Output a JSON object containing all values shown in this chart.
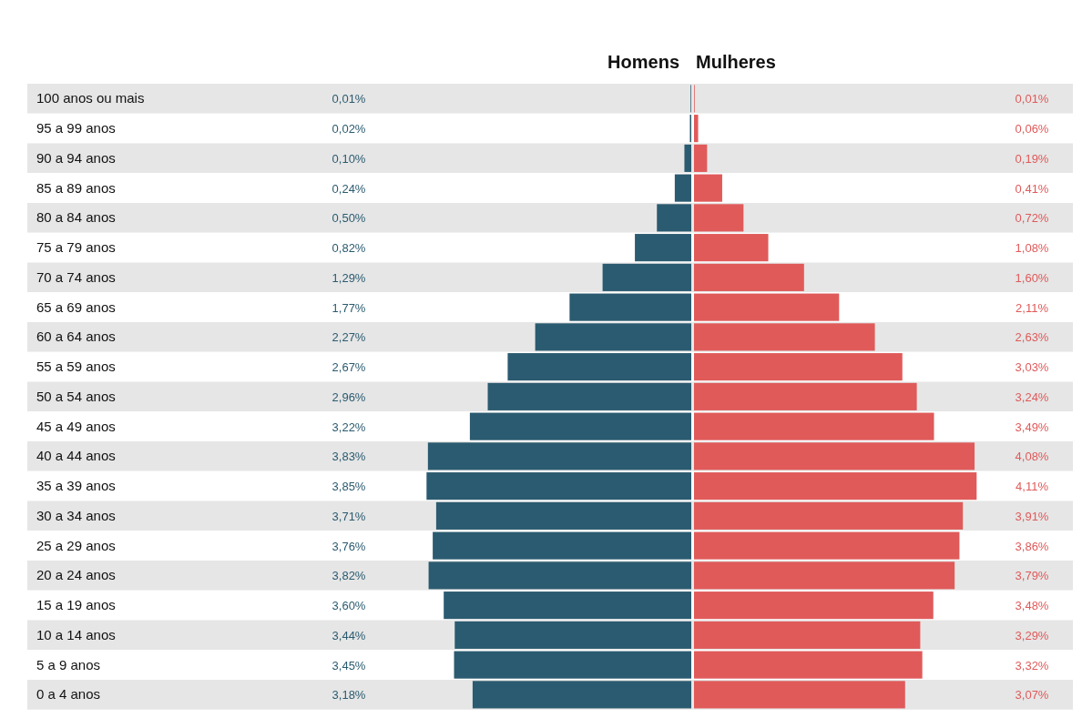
{
  "chart_data": [
    {
      "type": "bar",
      "orientation": "horizontal",
      "legend": "top",
      "categories": [
        "100 anos ou mais",
        "95 a 99 anos",
        "90 a 94 anos",
        "85 a 89 anos",
        "80 a 84 anos",
        "75 a 79 anos",
        "70 a 74 anos",
        "65 a 69 anos",
        "60 a 64 anos",
        "55 a 59 anos",
        "50 a 54 anos",
        "45 a 49 anos",
        "40 a 44 anos",
        "35 a 39 anos",
        "30 a 34 anos",
        "25 a 29 anos",
        "20 a 24 anos",
        "15 a 19 anos",
        "10 a 14 anos",
        "5 a 9 anos",
        "0 a 4 anos"
      ],
      "series": [
        {
          "name": "Homens",
          "color": "#2b5b70",
          "values": [
            0.01,
            0.02,
            0.1,
            0.24,
            0.5,
            0.82,
            1.29,
            1.77,
            2.27,
            2.67,
            2.96,
            3.22,
            3.83,
            3.85,
            3.71,
            3.76,
            3.82,
            3.6,
            3.44,
            3.45,
            3.18
          ],
          "value_labels": [
            "0,01%",
            "0,02%",
            "0,10%",
            "0,24%",
            "0,50%",
            "0,82%",
            "1,29%",
            "1,77%",
            "2,27%",
            "2,67%",
            "2,96%",
            "3,22%",
            "3,83%",
            "3,85%",
            "3,71%",
            "3,76%",
            "3,82%",
            "3,60%",
            "3,44%",
            "3,45%",
            "3,18%"
          ]
        }
      ]
    },
    {
      "type": "bar",
      "orientation": "horizontal",
      "legend": "top",
      "categories": [
        null,
        null,
        null,
        null,
        null,
        null,
        null,
        null,
        null,
        null,
        null,
        null,
        null,
        null,
        null,
        null,
        null,
        null,
        null,
        null,
        null
      ],
      "series": [
        {
          "name": "Mulheres",
          "color": "#e05a5a",
          "values": [
            0.01,
            0.06,
            0.19,
            0.41,
            0.72,
            1.08,
            1.6,
            2.11,
            2.63,
            3.03,
            3.24,
            3.49,
            4.08,
            4.11,
            3.91,
            3.86,
            3.79,
            3.48,
            3.29,
            3.32,
            3.07
          ],
          "value_labels": [
            "0,01%",
            "0,06%",
            "0,19%",
            "0,41%",
            "0,72%",
            "1,08%",
            "1,60%",
            "2,11%",
            "2,63%",
            "3,03%",
            "3,24%",
            "3,49%",
            "4,08%",
            "4,11%",
            "3,91%",
            "3,86%",
            "3,79%",
            "3,48%",
            "3,29%",
            "3,32%",
            "3,07%"
          ]
        }
      ]
    }
  ]
}
